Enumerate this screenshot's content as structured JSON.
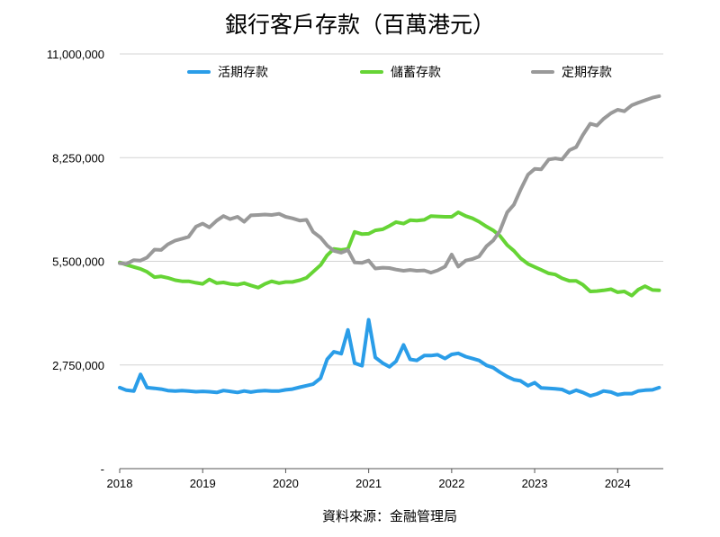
{
  "chart_data": {
    "type": "line",
    "title": "銀行客戶存款（百萬港元）",
    "source": "資料來源：金融管理局",
    "xlabel": "",
    "ylabel": "",
    "x_ticks": [
      "2018",
      "2019",
      "2020",
      "2021",
      "2022",
      "2023",
      "2024"
    ],
    "y_ticks": [
      "11,000,000",
      "8,250,000",
      "5,500,000",
      "2,750,000",
      "-"
    ],
    "ylim": [
      0,
      11000000
    ],
    "xlim": [
      2018.0,
      2024.55
    ],
    "grid": "horizontal",
    "legend_position": "top",
    "series": [
      {
        "name": "活期存款",
        "color": "#2a9de8",
        "points": [
          [
            2018.0,
            2150000
          ],
          [
            2018.08,
            2080000
          ],
          [
            2018.17,
            2060000
          ],
          [
            2018.25,
            2500000
          ],
          [
            2018.33,
            2150000
          ],
          [
            2018.42,
            2130000
          ],
          [
            2018.5,
            2110000
          ],
          [
            2018.58,
            2070000
          ],
          [
            2018.67,
            2060000
          ],
          [
            2018.75,
            2070000
          ],
          [
            2018.83,
            2060000
          ],
          [
            2018.92,
            2040000
          ],
          [
            2019.0,
            2050000
          ],
          [
            2019.08,
            2040000
          ],
          [
            2019.17,
            2020000
          ],
          [
            2019.25,
            2070000
          ],
          [
            2019.33,
            2050000
          ],
          [
            2019.42,
            2020000
          ],
          [
            2019.5,
            2060000
          ],
          [
            2019.58,
            2030000
          ],
          [
            2019.67,
            2060000
          ],
          [
            2019.75,
            2070000
          ],
          [
            2019.83,
            2060000
          ],
          [
            2019.92,
            2060000
          ],
          [
            2020.0,
            2090000
          ],
          [
            2020.08,
            2110000
          ],
          [
            2020.17,
            2160000
          ],
          [
            2020.25,
            2200000
          ],
          [
            2020.33,
            2240000
          ],
          [
            2020.42,
            2400000
          ],
          [
            2020.5,
            2900000
          ],
          [
            2020.58,
            3100000
          ],
          [
            2020.67,
            3050000
          ],
          [
            2020.75,
            3680000
          ],
          [
            2020.83,
            2800000
          ],
          [
            2020.92,
            2730000
          ],
          [
            2021.0,
            3950000
          ],
          [
            2021.08,
            2950000
          ],
          [
            2021.17,
            2800000
          ],
          [
            2021.25,
            2700000
          ],
          [
            2021.33,
            2850000
          ],
          [
            2021.42,
            3280000
          ],
          [
            2021.5,
            2900000
          ],
          [
            2021.58,
            2870000
          ],
          [
            2021.67,
            3000000
          ],
          [
            2021.75,
            3000000
          ],
          [
            2021.83,
            3020000
          ],
          [
            2021.92,
            2920000
          ],
          [
            2022.0,
            3030000
          ],
          [
            2022.08,
            3060000
          ],
          [
            2022.17,
            2970000
          ],
          [
            2022.25,
            2920000
          ],
          [
            2022.33,
            2870000
          ],
          [
            2022.42,
            2740000
          ],
          [
            2022.5,
            2680000
          ],
          [
            2022.58,
            2560000
          ],
          [
            2022.67,
            2440000
          ],
          [
            2022.75,
            2360000
          ],
          [
            2022.83,
            2330000
          ],
          [
            2022.92,
            2200000
          ],
          [
            2023.0,
            2280000
          ],
          [
            2023.08,
            2140000
          ],
          [
            2023.17,
            2130000
          ],
          [
            2023.25,
            2120000
          ],
          [
            2023.33,
            2100000
          ],
          [
            2023.42,
            2010000
          ],
          [
            2023.5,
            2080000
          ],
          [
            2023.58,
            2020000
          ],
          [
            2023.67,
            1930000
          ],
          [
            2023.75,
            1980000
          ],
          [
            2023.83,
            2060000
          ],
          [
            2023.92,
            2030000
          ],
          [
            2024.0,
            1960000
          ],
          [
            2024.08,
            1990000
          ],
          [
            2024.17,
            1990000
          ],
          [
            2024.25,
            2060000
          ],
          [
            2024.33,
            2080000
          ],
          [
            2024.42,
            2090000
          ],
          [
            2024.5,
            2150000
          ]
        ]
      },
      {
        "name": "儲蓄存款",
        "color": "#66d435",
        "points": [
          [
            2018.0,
            5470000
          ],
          [
            2018.08,
            5410000
          ],
          [
            2018.17,
            5350000
          ],
          [
            2018.25,
            5300000
          ],
          [
            2018.33,
            5220000
          ],
          [
            2018.42,
            5080000
          ],
          [
            2018.5,
            5100000
          ],
          [
            2018.58,
            5060000
          ],
          [
            2018.67,
            5000000
          ],
          [
            2018.75,
            4970000
          ],
          [
            2018.83,
            4970000
          ],
          [
            2018.92,
            4930000
          ],
          [
            2019.0,
            4900000
          ],
          [
            2019.08,
            5020000
          ],
          [
            2019.17,
            4920000
          ],
          [
            2019.25,
            4940000
          ],
          [
            2019.33,
            4900000
          ],
          [
            2019.42,
            4880000
          ],
          [
            2019.5,
            4920000
          ],
          [
            2019.58,
            4860000
          ],
          [
            2019.67,
            4800000
          ],
          [
            2019.75,
            4900000
          ],
          [
            2019.83,
            4970000
          ],
          [
            2019.92,
            4920000
          ],
          [
            2020.0,
            4950000
          ],
          [
            2020.08,
            4950000
          ],
          [
            2020.17,
            5000000
          ],
          [
            2020.25,
            5060000
          ],
          [
            2020.33,
            5220000
          ],
          [
            2020.42,
            5400000
          ],
          [
            2020.5,
            5660000
          ],
          [
            2020.58,
            5830000
          ],
          [
            2020.67,
            5800000
          ],
          [
            2020.75,
            5830000
          ],
          [
            2020.83,
            6280000
          ],
          [
            2020.92,
            6220000
          ],
          [
            2021.0,
            6230000
          ],
          [
            2021.08,
            6320000
          ],
          [
            2021.17,
            6350000
          ],
          [
            2021.25,
            6440000
          ],
          [
            2021.33,
            6540000
          ],
          [
            2021.42,
            6500000
          ],
          [
            2021.5,
            6590000
          ],
          [
            2021.58,
            6580000
          ],
          [
            2021.67,
            6600000
          ],
          [
            2021.75,
            6700000
          ],
          [
            2021.83,
            6690000
          ],
          [
            2021.92,
            6680000
          ],
          [
            2022.0,
            6680000
          ],
          [
            2022.08,
            6800000
          ],
          [
            2022.17,
            6700000
          ],
          [
            2022.25,
            6640000
          ],
          [
            2022.33,
            6550000
          ],
          [
            2022.42,
            6420000
          ],
          [
            2022.5,
            6320000
          ],
          [
            2022.58,
            6180000
          ],
          [
            2022.67,
            5930000
          ],
          [
            2022.75,
            5780000
          ],
          [
            2022.83,
            5580000
          ],
          [
            2022.92,
            5430000
          ],
          [
            2023.0,
            5350000
          ],
          [
            2023.08,
            5270000
          ],
          [
            2023.17,
            5180000
          ],
          [
            2023.25,
            5150000
          ],
          [
            2023.33,
            5050000
          ],
          [
            2023.42,
            4980000
          ],
          [
            2023.5,
            4980000
          ],
          [
            2023.58,
            4880000
          ],
          [
            2023.67,
            4700000
          ],
          [
            2023.75,
            4710000
          ],
          [
            2023.83,
            4730000
          ],
          [
            2023.92,
            4760000
          ],
          [
            2024.0,
            4680000
          ],
          [
            2024.08,
            4700000
          ],
          [
            2024.17,
            4590000
          ],
          [
            2024.25,
            4750000
          ],
          [
            2024.33,
            4840000
          ],
          [
            2024.42,
            4740000
          ],
          [
            2024.5,
            4730000
          ]
        ]
      },
      {
        "name": "定期存款",
        "color": "#999999",
        "points": [
          [
            2018.0,
            5450000
          ],
          [
            2018.08,
            5430000
          ],
          [
            2018.17,
            5530000
          ],
          [
            2018.25,
            5520000
          ],
          [
            2018.33,
            5600000
          ],
          [
            2018.42,
            5810000
          ],
          [
            2018.5,
            5800000
          ],
          [
            2018.58,
            5950000
          ],
          [
            2018.67,
            6050000
          ],
          [
            2018.75,
            6100000
          ],
          [
            2018.83,
            6150000
          ],
          [
            2018.92,
            6420000
          ],
          [
            2019.0,
            6500000
          ],
          [
            2019.08,
            6400000
          ],
          [
            2019.17,
            6580000
          ],
          [
            2019.25,
            6700000
          ],
          [
            2019.33,
            6620000
          ],
          [
            2019.42,
            6680000
          ],
          [
            2019.5,
            6550000
          ],
          [
            2019.58,
            6720000
          ],
          [
            2019.67,
            6730000
          ],
          [
            2019.75,
            6740000
          ],
          [
            2019.83,
            6730000
          ],
          [
            2019.92,
            6760000
          ],
          [
            2020.0,
            6680000
          ],
          [
            2020.08,
            6640000
          ],
          [
            2020.17,
            6580000
          ],
          [
            2020.25,
            6600000
          ],
          [
            2020.33,
            6280000
          ],
          [
            2020.42,
            6130000
          ],
          [
            2020.5,
            5920000
          ],
          [
            2020.58,
            5780000
          ],
          [
            2020.67,
            5730000
          ],
          [
            2020.75,
            5800000
          ],
          [
            2020.83,
            5470000
          ],
          [
            2020.92,
            5460000
          ],
          [
            2021.0,
            5520000
          ],
          [
            2021.08,
            5310000
          ],
          [
            2021.17,
            5330000
          ],
          [
            2021.25,
            5320000
          ],
          [
            2021.33,
            5280000
          ],
          [
            2021.42,
            5250000
          ],
          [
            2021.5,
            5270000
          ],
          [
            2021.58,
            5250000
          ],
          [
            2021.67,
            5260000
          ],
          [
            2021.75,
            5200000
          ],
          [
            2021.83,
            5260000
          ],
          [
            2021.92,
            5360000
          ],
          [
            2022.0,
            5680000
          ],
          [
            2022.08,
            5360000
          ],
          [
            2022.17,
            5520000
          ],
          [
            2022.25,
            5560000
          ],
          [
            2022.33,
            5630000
          ],
          [
            2022.42,
            5900000
          ],
          [
            2022.5,
            6050000
          ],
          [
            2022.58,
            6300000
          ],
          [
            2022.67,
            6800000
          ],
          [
            2022.75,
            7000000
          ],
          [
            2022.83,
            7400000
          ],
          [
            2022.92,
            7800000
          ],
          [
            2023.0,
            7950000
          ],
          [
            2023.08,
            7940000
          ],
          [
            2023.17,
            8200000
          ],
          [
            2023.25,
            8230000
          ],
          [
            2023.33,
            8200000
          ],
          [
            2023.42,
            8450000
          ],
          [
            2023.5,
            8530000
          ],
          [
            2023.58,
            8850000
          ],
          [
            2023.67,
            9150000
          ],
          [
            2023.75,
            9100000
          ],
          [
            2023.83,
            9280000
          ],
          [
            2023.92,
            9430000
          ],
          [
            2024.0,
            9520000
          ],
          [
            2024.08,
            9480000
          ],
          [
            2024.17,
            9640000
          ],
          [
            2024.25,
            9710000
          ],
          [
            2024.33,
            9770000
          ],
          [
            2024.42,
            9840000
          ],
          [
            2024.5,
            9880000
          ]
        ]
      }
    ]
  }
}
